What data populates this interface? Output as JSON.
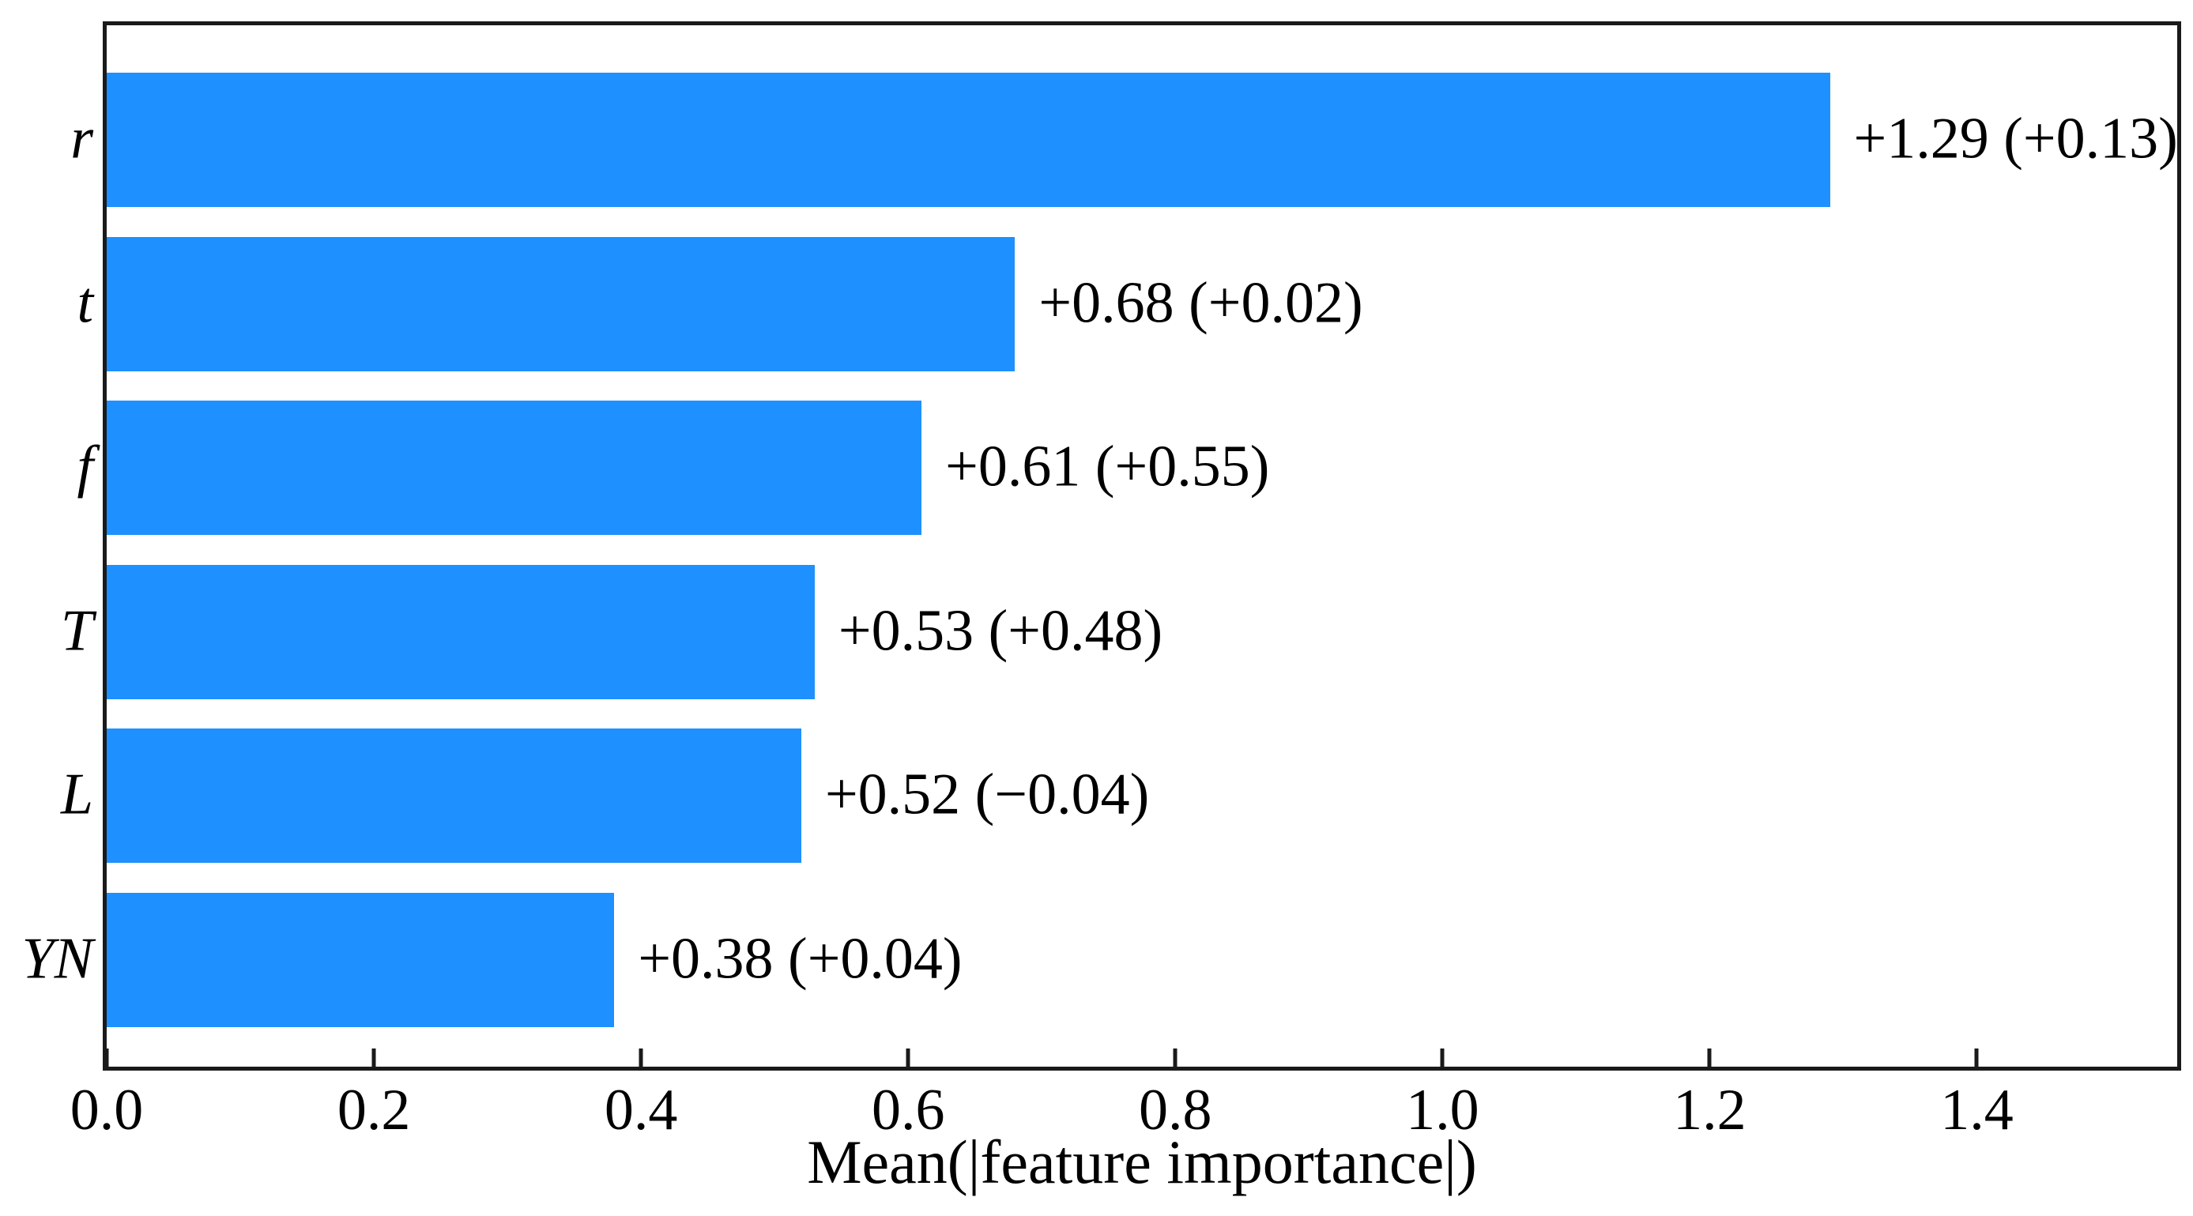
{
  "chart_data": {
    "type": "bar",
    "orientation": "horizontal",
    "title": "",
    "xlabel": "Mean(|feature importance|)",
    "ylabel": "",
    "categories": [
      "r",
      "t",
      "f",
      "T",
      "L",
      "YN"
    ],
    "values": [
      1.29,
      0.68,
      0.61,
      0.53,
      0.52,
      0.38
    ],
    "secondary_values": [
      "+0.13",
      "+0.02",
      "+0.55",
      "+0.48",
      "−0.04",
      "+0.04"
    ],
    "bar_labels": [
      "+1.29 (+0.13)",
      "+0.68 (+0.02)",
      "+0.61 (+0.55)",
      "+0.53 (+0.48)",
      "+0.52 (−0.04)",
      "+0.38 (+0.04)"
    ],
    "x_ticks": [
      "0.0",
      "0.2",
      "0.4",
      "0.6",
      "0.8",
      "1.0",
      "1.2",
      "1.4"
    ],
    "x_tick_values": [
      0.0,
      0.2,
      0.4,
      0.6,
      0.8,
      1.0,
      1.2,
      1.4
    ],
    "xlim": [
      0,
      1.55
    ],
    "grid": false,
    "legend": null,
    "bar_color": "#1E90FF",
    "axis_color": "#1a1a1a",
    "text_color": "#000000",
    "background_color": "#ffffff"
  }
}
